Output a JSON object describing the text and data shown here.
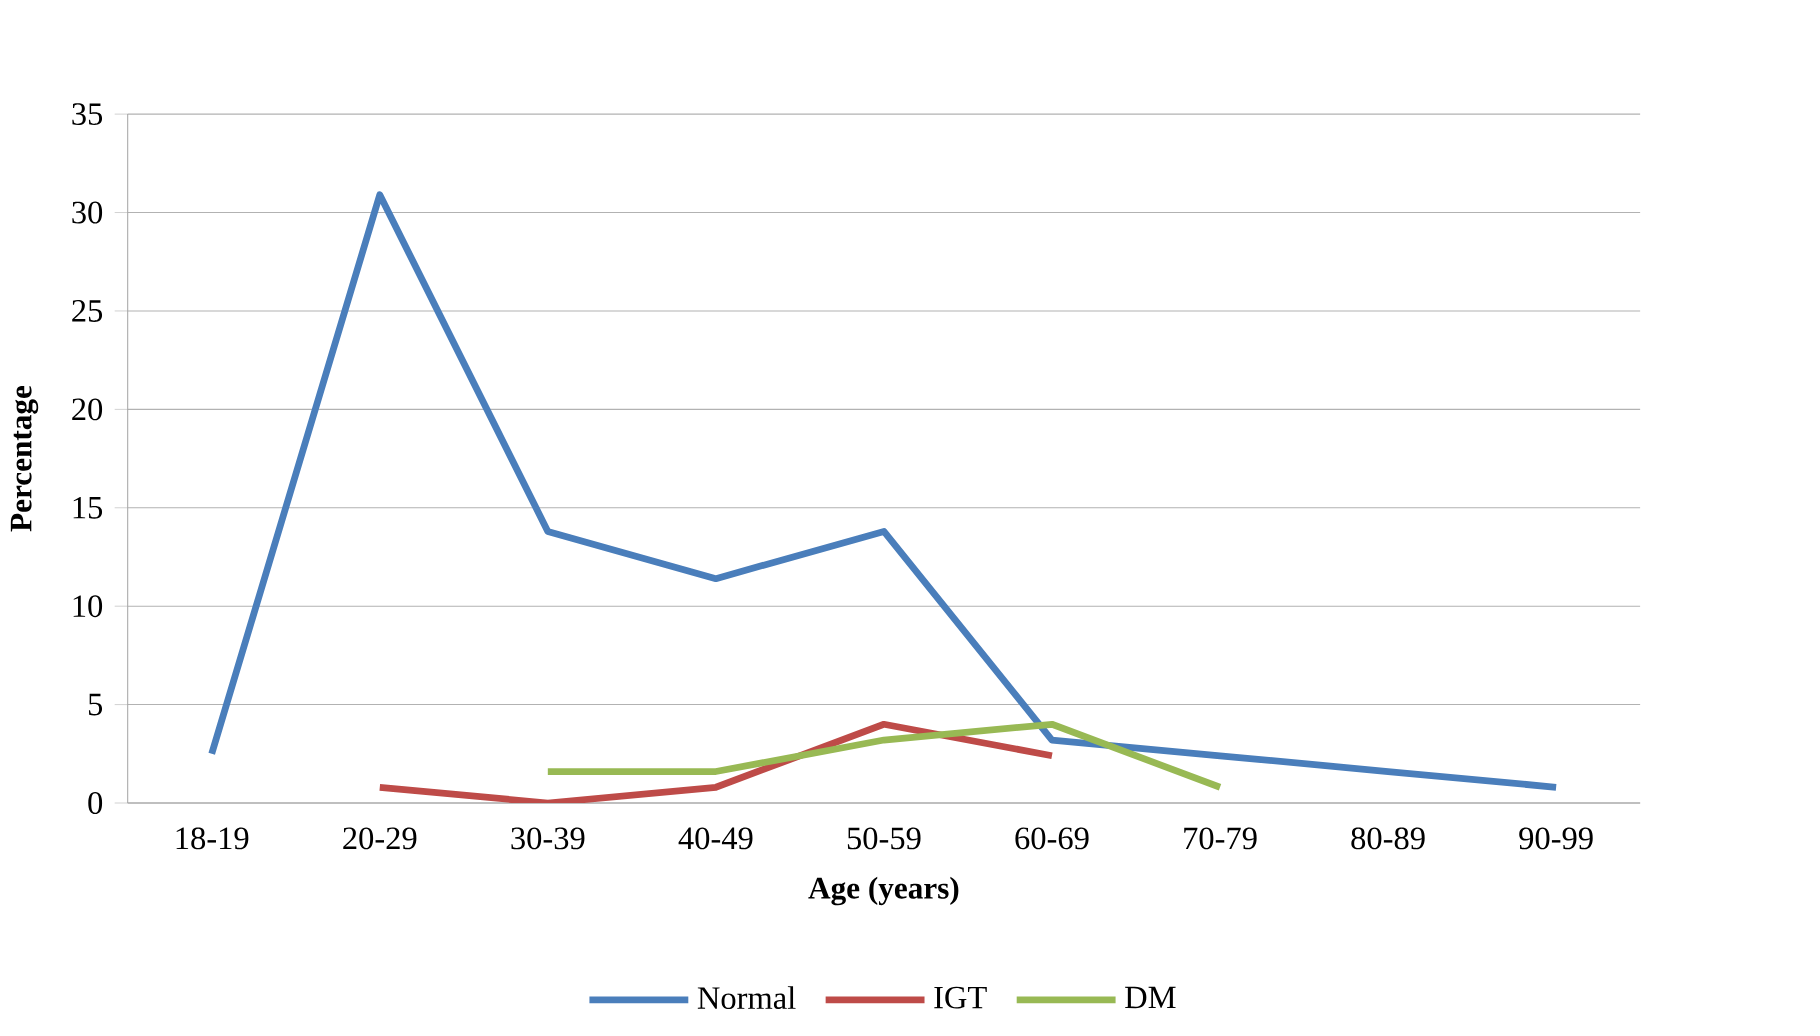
{
  "chart_data": {
    "type": "line",
    "xlabel": "Age (years)",
    "ylabel": "Percentage",
    "categories": [
      "18-19",
      "20-29",
      "30-39",
      "40-49",
      "50-59",
      "60-69",
      "70-79",
      "80-89",
      "90-99"
    ],
    "series": [
      {
        "name": "Normal",
        "color": "#4a7ebb",
        "values": [
          2.5,
          30.9,
          13.8,
          11.4,
          13.8,
          3.2,
          2.4,
          1.6,
          0.8
        ]
      },
      {
        "name": "IGT",
        "color": "#be4b48",
        "values": [
          null,
          0.8,
          0,
          0.8,
          4.0,
          2.4,
          null,
          null,
          null
        ]
      },
      {
        "name": "DM",
        "color": "#98b954",
        "values": [
          null,
          null,
          1.6,
          1.6,
          3.2,
          4.0,
          0.8,
          null,
          null
        ]
      }
    ],
    "ylim": [
      0,
      35
    ],
    "yticks": [
      0,
      5,
      10,
      15,
      20,
      25,
      30,
      35
    ],
    "grid": "y",
    "legend": "bottom",
    "marker": "none",
    "line_style": "solid"
  }
}
